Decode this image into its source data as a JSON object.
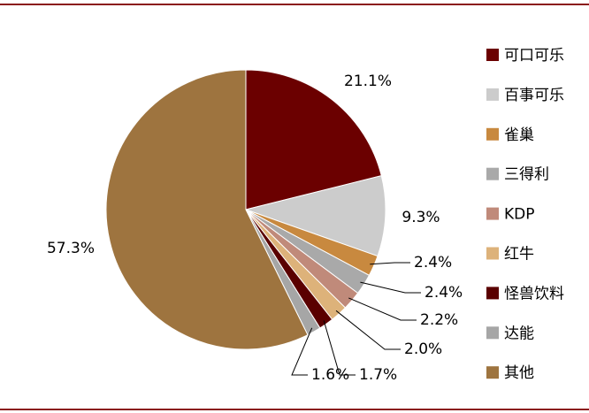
{
  "chart_data": {
    "type": "pie",
    "categories": [
      "可口可乐",
      "百事可乐",
      "雀巢",
      "三得利",
      "KDP",
      "红牛",
      "怪兽饮料",
      "达能",
      "其他"
    ],
    "values": [
      21.1,
      9.3,
      2.4,
      2.4,
      2.2,
      2.0,
      1.7,
      1.6,
      57.3
    ],
    "value_labels": [
      "21.1%",
      "9.3%",
      "2.4%",
      "2.4%",
      "2.2%",
      "2.0%",
      "1.7%",
      "1.6%",
      "57.3%"
    ],
    "colors": [
      "#6b0000",
      "#cccccc",
      "#c8893f",
      "#a9a9a9",
      "#c08a7a",
      "#ddb27a",
      "#5a0000",
      "#a6a6a6",
      "#9e743f"
    ]
  }
}
